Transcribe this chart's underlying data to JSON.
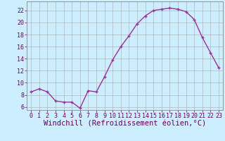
{
  "x": [
    0,
    1,
    2,
    3,
    4,
    5,
    6,
    7,
    8,
    9,
    10,
    11,
    12,
    13,
    14,
    15,
    16,
    17,
    18,
    19,
    20,
    21,
    22,
    23
  ],
  "y": [
    8.5,
    9.0,
    8.5,
    7.0,
    6.8,
    6.8,
    5.8,
    8.7,
    8.5,
    11.0,
    13.8,
    16.0,
    17.8,
    19.8,
    21.1,
    22.0,
    22.2,
    22.4,
    22.2,
    21.8,
    20.5,
    17.5,
    15.0,
    12.5
  ],
  "line_color": "#993399",
  "marker": "+",
  "bg_color": "#cceeff",
  "grid_color": "#aaaaaa",
  "xlabel": "Windchill (Refroidissement éolien,°C)",
  "ylabel_ticks": [
    6,
    8,
    10,
    12,
    14,
    16,
    18,
    20,
    22
  ],
  "ylim": [
    5.5,
    23.5
  ],
  "xlim": [
    -0.5,
    23.5
  ],
  "xticks": [
    0,
    1,
    2,
    3,
    4,
    5,
    6,
    7,
    8,
    9,
    10,
    11,
    12,
    13,
    14,
    15,
    16,
    17,
    18,
    19,
    20,
    21,
    22,
    23
  ],
  "xtick_labels": [
    "0",
    "1",
    "2",
    "3",
    "4",
    "5",
    "6",
    "7",
    "8",
    "9",
    "10",
    "11",
    "12",
    "13",
    "14",
    "15",
    "16",
    "17",
    "18",
    "19",
    "20",
    "21",
    "22",
    "23"
  ],
  "font_size": 6.0,
  "xlabel_fontsize": 7.5,
  "line_width": 1.0,
  "marker_size": 3.0
}
